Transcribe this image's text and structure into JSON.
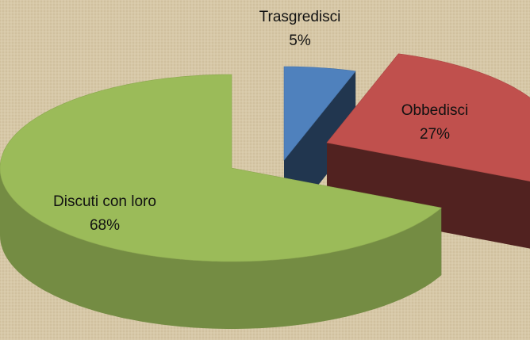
{
  "chart_data": {
    "type": "pie3d",
    "categories": [
      "Trasgredisci",
      "Obbedisci",
      "Discuti con loro"
    ],
    "values": [
      5,
      27,
      68
    ],
    "value_labels": [
      "5%",
      "27%",
      "68%"
    ],
    "colors": [
      "#4f81bd",
      "#c0504d",
      "#9bbb59"
    ]
  }
}
